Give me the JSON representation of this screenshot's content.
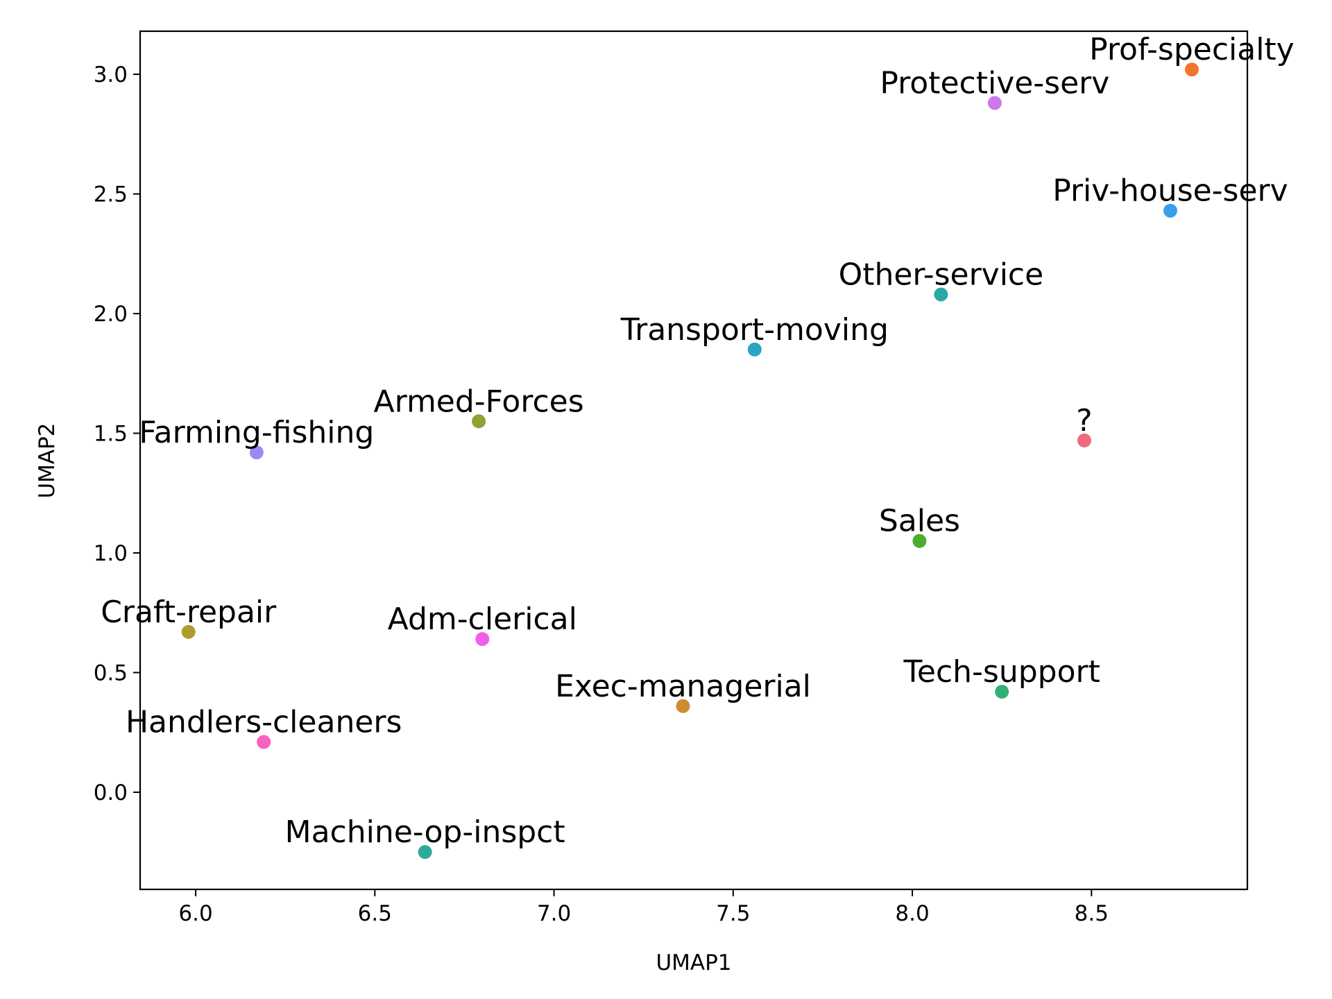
{
  "chart_data": {
    "type": "scatter",
    "title": "",
    "xlabel": "UMAP1",
    "ylabel": "UMAP2",
    "xlim": [
      5.845,
      8.935
    ],
    "ylim": [
      -0.406,
      3.18
    ],
    "xticks": [
      "6.0",
      "6.5",
      "7.0",
      "7.5",
      "8.0",
      "8.5"
    ],
    "yticks": [
      "0.0",
      "0.5",
      "1.0",
      "1.5",
      "2.0",
      "2.5",
      "3.0"
    ],
    "grid": false,
    "legend": "none",
    "points": [
      {
        "label": "Prof-specialty",
        "x": 8.78,
        "y": 3.02,
        "color": "#f0762f"
      },
      {
        "label": "Protective-serv",
        "x": 8.23,
        "y": 2.88,
        "color": "#cc77ee"
      },
      {
        "label": "Priv-house-serv",
        "x": 8.72,
        "y": 2.43,
        "color": "#3a9fea"
      },
      {
        "label": "Other-service",
        "x": 8.08,
        "y": 2.08,
        "color": "#2aa8a8"
      },
      {
        "label": "Transport-moving",
        "x": 7.56,
        "y": 1.85,
        "color": "#2aa5c4"
      },
      {
        "label": "Armed-Forces",
        "x": 6.79,
        "y": 1.55,
        "color": "#8da334"
      },
      {
        "label": "Farming-fishing",
        "x": 6.17,
        "y": 1.42,
        "color": "#9a8cf4"
      },
      {
        "label": "?",
        "x": 8.48,
        "y": 1.47,
        "color": "#f26a7e"
      },
      {
        "label": "Sales",
        "x": 8.02,
        "y": 1.05,
        "color": "#4aad2f"
      },
      {
        "label": "Craft-repair",
        "x": 5.98,
        "y": 0.67,
        "color": "#ad9e2c"
      },
      {
        "label": "Adm-clerical",
        "x": 6.8,
        "y": 0.64,
        "color": "#f15ee8"
      },
      {
        "label": "Tech-support",
        "x": 8.25,
        "y": 0.42,
        "color": "#32b073"
      },
      {
        "label": "Exec-managerial",
        "x": 7.36,
        "y": 0.36,
        "color": "#d08c32"
      },
      {
        "label": "Handlers-cleaners",
        "x": 6.19,
        "y": 0.21,
        "color": "#f762bf"
      },
      {
        "label": "Machine-op-inspct",
        "x": 6.64,
        "y": -0.25,
        "color": "#2eab96"
      }
    ]
  }
}
